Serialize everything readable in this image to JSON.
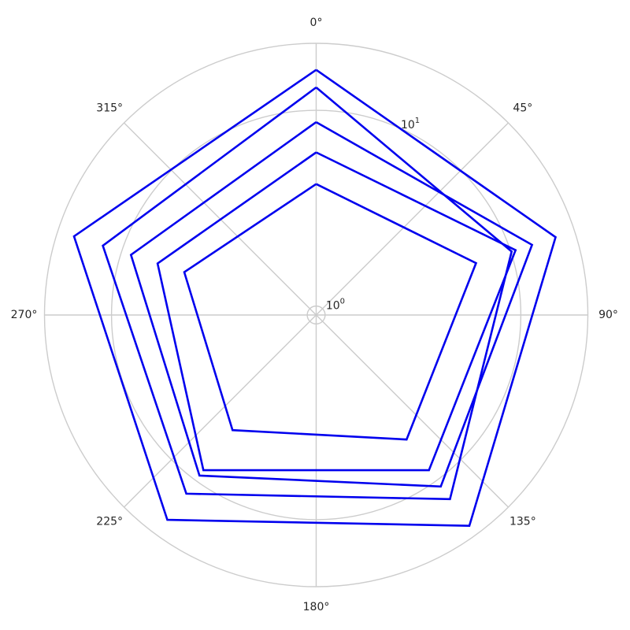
{
  "chart_data": {
    "type": "line",
    "projection": "polar",
    "radial_scale": "log",
    "theta_direction": "clockwise",
    "theta_zero": "top",
    "grid": true,
    "rlim": [
      0.9,
      22
    ],
    "theta_ticks": [
      {
        "angle": 0,
        "label": "0°"
      },
      {
        "angle": 45,
        "label": "45°"
      },
      {
        "angle": 90,
        "label": "90°"
      },
      {
        "angle": 135,
        "label": "135°"
      },
      {
        "angle": 180,
        "label": "180°"
      },
      {
        "angle": 225,
        "label": "225°"
      },
      {
        "angle": 270,
        "label": "270°"
      },
      {
        "angle": 315,
        "label": "315°"
      }
    ],
    "r_ticks": [
      {
        "value": 1,
        "base": "10",
        "exp": "0"
      },
      {
        "value": 10,
        "base": "10",
        "exp": "1"
      }
    ],
    "r_tick_label_angle": 22.5,
    "theta": [
      0,
      72,
      144,
      216,
      288,
      360
    ],
    "series_color": "#0000ee",
    "series": [
      {
        "values": [
          4.2,
          6.5,
          5.5,
          4.8,
          4.6,
          4.2
        ]
      },
      {
        "values": [
          6.1,
          10.6,
          8.6,
          8.6,
          6.4,
          6.1
        ]
      },
      {
        "values": [
          8.7,
          13.0,
          10.9,
          9.3,
          8.9,
          8.7
        ]
      },
      {
        "values": [
          13.1,
          10.1,
          13.1,
          12.1,
          12.6,
          13.1
        ]
      },
      {
        "values": [
          16.1,
          17.4,
          19.3,
          17.7,
          18.0,
          16.1
        ]
      }
    ]
  }
}
